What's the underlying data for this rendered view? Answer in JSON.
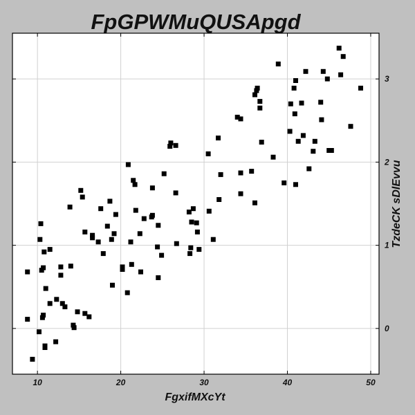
{
  "chart_data": {
    "type": "scatter",
    "title": "FpGPWMuQUSApgd",
    "xlabel": "FgxifMXcYt",
    "ylabel": "TzdeCK sDlEvvu",
    "xlim": [
      7,
      51
    ],
    "ylim": [
      -0.55,
      3.55
    ],
    "xticks": [
      10,
      20,
      30,
      40,
      50
    ],
    "yticks": [
      0,
      1,
      2,
      3
    ],
    "x_tick_labels": [
      "10",
      "20",
      "30",
      "40",
      "50"
    ],
    "y_tick_labels": [
      "0",
      "1",
      "2",
      "3"
    ],
    "grid": true,
    "y_axis_side": "right",
    "marker": "square",
    "marker_color": "#000000",
    "background": "#c0c0c0",
    "plot_background": "#ffffff",
    "points": [
      [
        8.8,
        0.68
      ],
      [
        8.8,
        0.11
      ],
      [
        9.4,
        -0.37
      ],
      [
        10.2,
        -0.04
      ],
      [
        10.3,
        1.07
      ],
      [
        10.4,
        1.26
      ],
      [
        10.5,
        0.7
      ],
      [
        10.6,
        0.13
      ],
      [
        10.7,
        0.16
      ],
      [
        10.7,
        0.73
      ],
      [
        10.8,
        0.92
      ],
      [
        10.9,
        -0.21
      ],
      [
        10.9,
        -0.23
      ],
      [
        11.0,
        0.48
      ],
      [
        11.5,
        0.95
      ],
      [
        11.5,
        0.3
      ],
      [
        12.2,
        -0.16
      ],
      [
        12.3,
        0.35
      ],
      [
        12.8,
        0.74
      ],
      [
        12.8,
        0.64
      ],
      [
        13.0,
        0.3
      ],
      [
        13.3,
        0.26
      ],
      [
        13.9,
        1.46
      ],
      [
        14.0,
        0.75
      ],
      [
        14.3,
        0.04
      ],
      [
        14.4,
        0.01
      ],
      [
        14.8,
        0.2
      ],
      [
        15.2,
        1.66
      ],
      [
        15.4,
        1.58
      ],
      [
        15.7,
        1.16
      ],
      [
        15.7,
        0.18
      ],
      [
        16.2,
        0.14
      ],
      [
        16.6,
        1.12
      ],
      [
        16.6,
        1.09
      ],
      [
        17.3,
        1.04
      ],
      [
        17.6,
        1.44
      ],
      [
        17.9,
        0.9
      ],
      [
        18.4,
        1.23
      ],
      [
        18.7,
        1.53
      ],
      [
        18.9,
        1.07
      ],
      [
        19.0,
        0.52
      ],
      [
        19.2,
        1.14
      ],
      [
        19.4,
        1.37
      ],
      [
        20.2,
        0.71
      ],
      [
        20.2,
        0.74
      ],
      [
        20.8,
        0.43
      ],
      [
        20.9,
        1.97
      ],
      [
        21.2,
        1.04
      ],
      [
        21.3,
        0.77
      ],
      [
        21.5,
        1.78
      ],
      [
        21.7,
        1.73
      ],
      [
        21.8,
        1.42
      ],
      [
        22.3,
        1.14
      ],
      [
        22.4,
        0.68
      ],
      [
        22.8,
        1.32
      ],
      [
        23.7,
        1.34
      ],
      [
        23.8,
        1.69
      ],
      [
        23.8,
        1.36
      ],
      [
        24.4,
        0.98
      ],
      [
        24.5,
        1.24
      ],
      [
        24.5,
        0.61
      ],
      [
        24.9,
        0.88
      ],
      [
        25.2,
        1.86
      ],
      [
        25.9,
        2.19
      ],
      [
        26.0,
        2.23
      ],
      [
        26.6,
        2.2
      ],
      [
        26.6,
        1.63
      ],
      [
        26.7,
        1.02
      ],
      [
        28.2,
        1.4
      ],
      [
        28.3,
        0.9
      ],
      [
        28.4,
        0.97
      ],
      [
        28.5,
        1.28
      ],
      [
        28.7,
        1.44
      ],
      [
        29.1,
        1.27
      ],
      [
        29.2,
        1.16
      ],
      [
        29.4,
        0.95
      ],
      [
        30.5,
        2.1
      ],
      [
        30.6,
        1.41
      ],
      [
        31.1,
        1.07
      ],
      [
        31.7,
        2.29
      ],
      [
        31.8,
        1.55
      ],
      [
        32.0,
        1.85
      ],
      [
        34.0,
        2.54
      ],
      [
        34.4,
        2.52
      ],
      [
        34.4,
        1.87
      ],
      [
        34.4,
        1.62
      ],
      [
        35.7,
        1.89
      ],
      [
        36.1,
        2.81
      ],
      [
        36.1,
        1.51
      ],
      [
        36.3,
        2.86
      ],
      [
        36.4,
        2.89
      ],
      [
        36.7,
        2.73
      ],
      [
        36.7,
        2.65
      ],
      [
        36.9,
        2.24
      ],
      [
        38.3,
        2.06
      ],
      [
        38.9,
        3.18
      ],
      [
        39.6,
        1.75
      ],
      [
        40.3,
        2.37
      ],
      [
        40.4,
        2.7
      ],
      [
        40.8,
        2.89
      ],
      [
        40.9,
        2.58
      ],
      [
        41.0,
        2.98
      ],
      [
        41.0,
        1.73
      ],
      [
        41.3,
        2.25
      ],
      [
        41.7,
        2.71
      ],
      [
        41.9,
        2.32
      ],
      [
        42.2,
        3.09
      ],
      [
        42.6,
        1.92
      ],
      [
        43.1,
        2.13
      ],
      [
        43.3,
        2.25
      ],
      [
        44.0,
        2.72
      ],
      [
        44.1,
        2.51
      ],
      [
        44.3,
        3.09
      ],
      [
        44.8,
        3.0
      ],
      [
        45.0,
        2.14
      ],
      [
        45.3,
        2.14
      ],
      [
        46.2,
        3.37
      ],
      [
        46.4,
        3.05
      ],
      [
        46.7,
        3.27
      ],
      [
        47.6,
        2.43
      ],
      [
        48.8,
        2.89
      ]
    ]
  }
}
